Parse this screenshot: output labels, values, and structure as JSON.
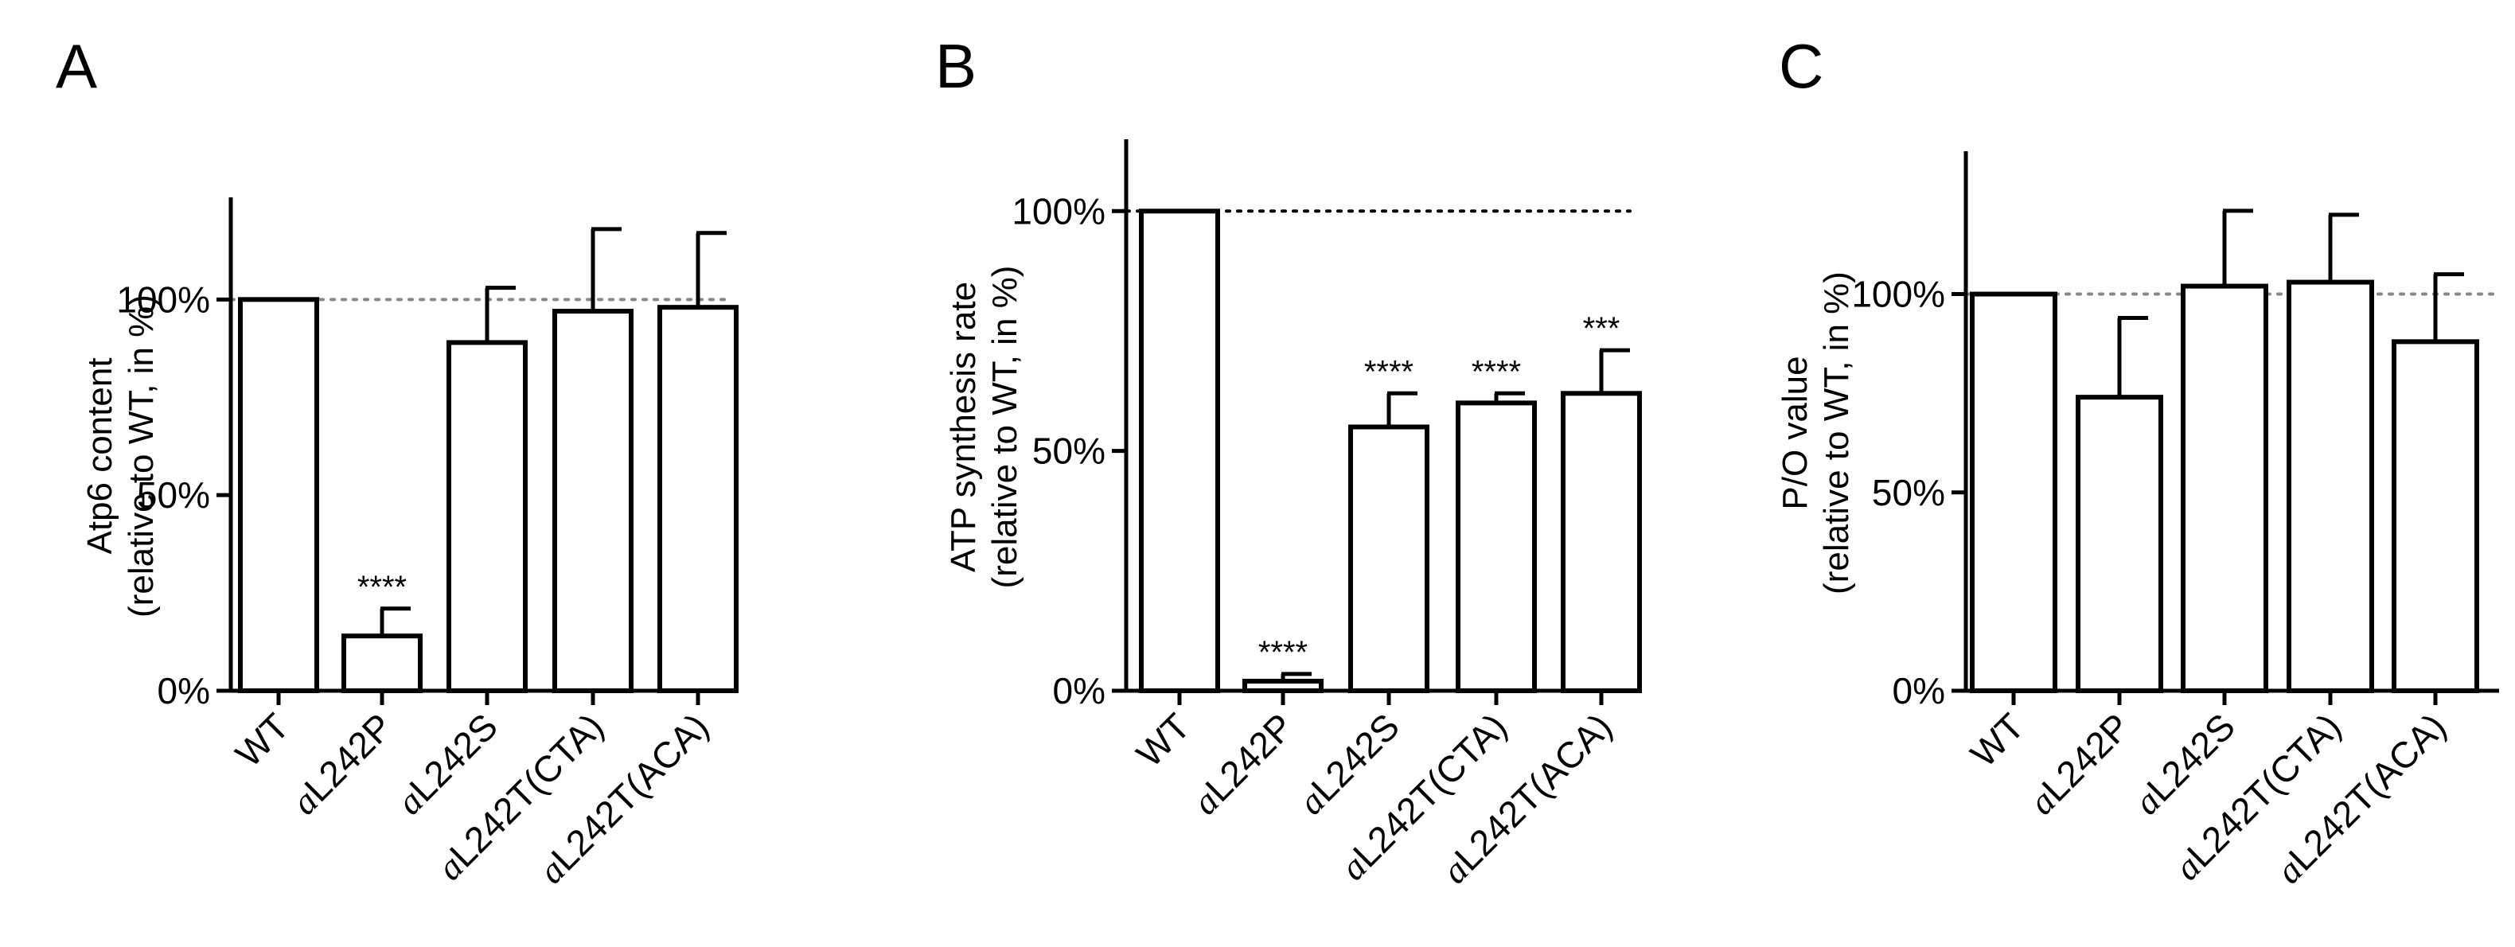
{
  "colors": {
    "bar_fill": "#ffffff",
    "stroke": "#000000",
    "ref_line_A": "#888888",
    "ref_line_B": "#000000",
    "ref_line_C": "#888888"
  },
  "chart_data": [
    {
      "type": "bar",
      "panel_label": "A",
      "ylabel_line1": "Atp6 content",
      "ylabel_line2": "(relative to WT, in %)",
      "categories": [
        {
          "prefix": "",
          "label": "WT"
        },
        {
          "prefix": "a",
          "label": "L242P"
        },
        {
          "prefix": "a",
          "label": "L242S"
        },
        {
          "prefix": "a",
          "label": "L242T(CTA)"
        },
        {
          "prefix": "a",
          "label": "L242T(ACA)"
        }
      ],
      "values": [
        100,
        14,
        89,
        97,
        98
      ],
      "errors": [
        0,
        7,
        14,
        21,
        19
      ],
      "significance": [
        "",
        "****",
        "",
        "",
        ""
      ],
      "yticks": [
        "0%",
        "50%",
        "100%"
      ],
      "ytick_values": [
        0,
        50,
        100
      ],
      "ylim": [
        0,
        120
      ],
      "reference_line": 100
    },
    {
      "type": "bar",
      "panel_label": "B",
      "ylabel_line1": "ATP synthesis rate",
      "ylabel_line2": "(relative to WT, in %)",
      "categories": [
        {
          "prefix": "",
          "label": "WT"
        },
        {
          "prefix": "a",
          "label": "L242P"
        },
        {
          "prefix": "a",
          "label": "L242S"
        },
        {
          "prefix": "a",
          "label": "L242T(CTA)"
        },
        {
          "prefix": "a",
          "label": "L242T(ACA)"
        }
      ],
      "values": [
        100,
        2,
        55,
        60,
        62
      ],
      "errors": [
        0,
        1.5,
        7,
        2,
        9
      ],
      "significance": [
        "",
        "****",
        "****",
        "****",
        "***"
      ],
      "yticks": [
        "0%",
        "50%",
        "100%"
      ],
      "ytick_values": [
        0,
        50,
        100
      ],
      "ylim": [
        0,
        110
      ],
      "reference_line": 100
    },
    {
      "type": "bar",
      "panel_label": "C",
      "ylabel_line1": "P/O value",
      "ylabel_line2": "(relative to WT, in %)",
      "categories": [
        {
          "prefix": "",
          "label": "WT"
        },
        {
          "prefix": "a",
          "label": "L242P"
        },
        {
          "prefix": "a",
          "label": "L242S"
        },
        {
          "prefix": "a",
          "label": "L242T(CTA)"
        },
        {
          "prefix": "a",
          "label": "L242T(ACA)"
        }
      ],
      "values": [
        100,
        74,
        102,
        103,
        88
      ],
      "errors": [
        0,
        20,
        19,
        17,
        17
      ],
      "significance": [
        "",
        "",
        "",
        "",
        ""
      ],
      "yticks": [
        "0%",
        "50%",
        "100%"
      ],
      "ytick_values": [
        0,
        50,
        100
      ],
      "ylim": [
        0,
        130
      ],
      "reference_line": 100
    }
  ]
}
